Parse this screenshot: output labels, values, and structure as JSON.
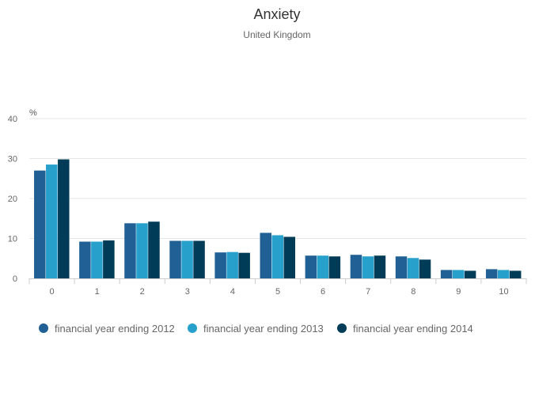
{
  "chart_data": {
    "type": "bar",
    "title": "Anxiety",
    "subtitle": "United Kingdom",
    "yunit": "%",
    "xlabel": "",
    "ylabel": "",
    "ylim": [
      0,
      40
    ],
    "yticks": [
      0,
      10,
      20,
      30,
      40
    ],
    "grid": true,
    "legend": "bottom-left",
    "categories": [
      "0",
      "1",
      "2",
      "3",
      "4",
      "5",
      "6",
      "7",
      "8",
      "9",
      "10"
    ],
    "series": [
      {
        "name": "financial year ending 2012",
        "color": "#206095",
        "values": [
          27.0,
          9.2,
          13.8,
          9.4,
          6.5,
          11.4,
          5.7,
          5.9,
          5.5,
          2.1,
          2.3
        ]
      },
      {
        "name": "financial year ending 2013",
        "color": "#27a0cc",
        "values": [
          28.5,
          9.2,
          13.8,
          9.4,
          6.6,
          10.8,
          5.7,
          5.5,
          5.1,
          2.1,
          2.1
        ]
      },
      {
        "name": "financial year ending 2014",
        "color": "#003c57",
        "values": [
          29.8,
          9.5,
          14.2,
          9.4,
          6.4,
          10.4,
          5.5,
          5.7,
          4.7,
          1.9,
          1.9
        ]
      }
    ]
  }
}
